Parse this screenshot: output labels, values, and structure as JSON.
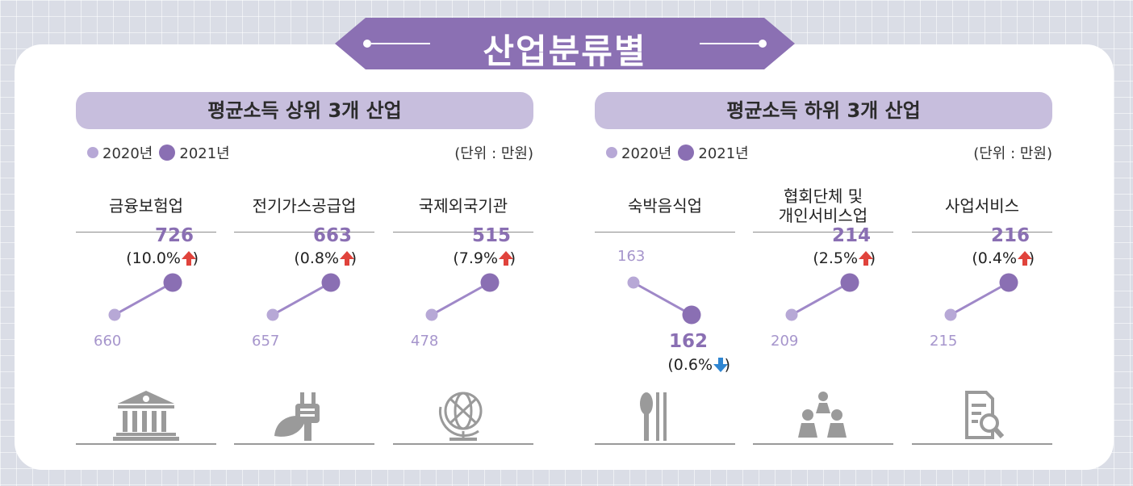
{
  "title": "산업분류별",
  "legend": {
    "a": "2020년",
    "b": "2021년"
  },
  "unit": "(단위 : 만원)",
  "colors": {
    "banner": "#8b70b3",
    "header": "#c7bedd",
    "dot2020": "#b7a8d6",
    "dot2021": "#8a6fb3",
    "up": "#e0433c",
    "down": "#2f86d2",
    "icon": "#9a9a9a"
  },
  "panels": [
    {
      "heading": "평균소득 상위 3개 산업"
    },
    {
      "heading": "평균소득 하위 3개 산업"
    }
  ],
  "chart_data": [
    {
      "type": "line",
      "title": "평균소득 상위 3개 산업",
      "unit": "만원",
      "series_labels": [
        "2020년",
        "2021년"
      ],
      "items": [
        {
          "name": "금융보험업",
          "y2020": 660,
          "y2021": 726,
          "change": "(10.0%",
          "direction": "up",
          "icon": "bank-icon"
        },
        {
          "name": "전기가스공급업",
          "y2020": 657,
          "y2021": 663,
          "change": "(0.8%",
          "direction": "up",
          "icon": "plug-leaf-icon"
        },
        {
          "name": "국제외국기관",
          "y2020": 478,
          "y2021": 515,
          "change": "(7.9%",
          "direction": "up",
          "icon": "globe-icon"
        }
      ]
    },
    {
      "type": "line",
      "title": "평균소득 하위 3개 산업",
      "unit": "만원",
      "series_labels": [
        "2020년",
        "2021년"
      ],
      "items": [
        {
          "name": "숙박음식업",
          "y2020": 163,
          "y2021": 162,
          "change": "(0.6%",
          "direction": "down",
          "icon": "spoon-chopsticks-icon"
        },
        {
          "name": "협회단체 및\n개인서비스업",
          "y2020": 209,
          "y2021": 214,
          "change": "(2.5%",
          "direction": "up",
          "icon": "people-icon"
        },
        {
          "name": "사업서비스",
          "y2020": 215,
          "y2021": 216,
          "change": "(0.4%",
          "direction": "up",
          "icon": "document-search-icon"
        }
      ]
    }
  ]
}
